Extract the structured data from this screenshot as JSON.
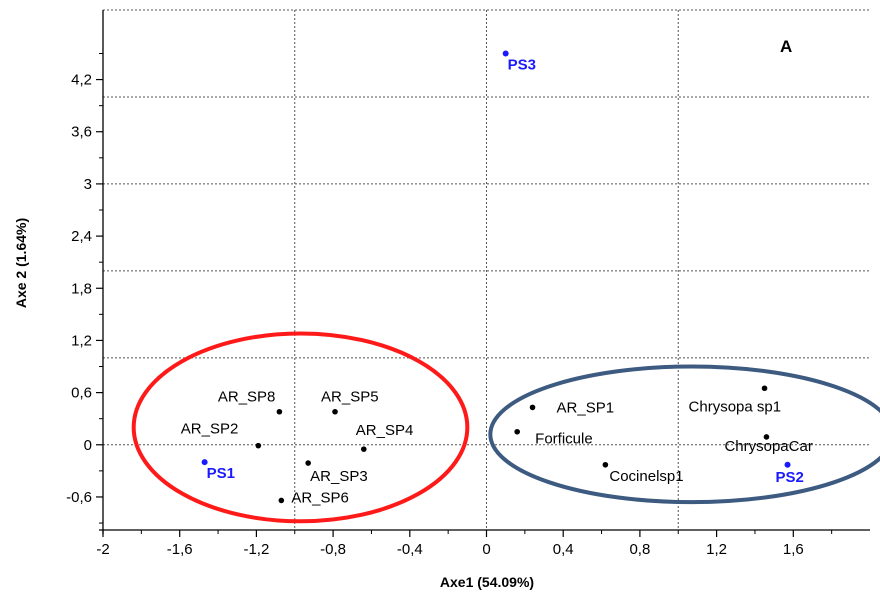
{
  "chart_data": {
    "type": "scatter",
    "title": "",
    "panel_label": "A",
    "xlabel": "Axe1 (54.09%)",
    "ylabel": "Axe 2 (1.64%)",
    "xlim": [
      -2,
      2
    ],
    "ylim": [
      -0.98,
      5.0
    ],
    "x_ticks": [
      -2,
      -1.6,
      -1.2,
      -0.8,
      -0.4,
      0,
      0.4,
      0.8,
      1.2,
      1.6
    ],
    "x_tick_labels": [
      "-2",
      "-1,6",
      "-1,2",
      "-0,8",
      "-0,4",
      "0",
      "0,4",
      "0,8",
      "1,2",
      "1,6"
    ],
    "y_ticks": [
      -0.6,
      0,
      0.6,
      1.2,
      1.8,
      2.4,
      3,
      3.6,
      4.2
    ],
    "y_tick_labels": [
      "-0,6",
      "0",
      "0,6",
      "1,2",
      "1,8",
      "2,4",
      "3",
      "3,6",
      "4,2"
    ],
    "grid": "dotted",
    "series": [
      {
        "color": "#000000",
        "points": [
          {
            "label": "AR_SP8",
            "x": -1.08,
            "y": 0.38
          },
          {
            "label": "AR_SP5",
            "x": -0.79,
            "y": 0.38
          },
          {
            "label": "AR_SP2",
            "x": -1.19,
            "y": -0.01
          },
          {
            "label": "AR_SP4",
            "x": -0.64,
            "y": -0.05
          },
          {
            "label": "AR_SP3",
            "x": -0.93,
            "y": -0.21
          },
          {
            "label": "AR_SP6",
            "x": -1.07,
            "y": -0.64
          },
          {
            "label": "AR_SP1",
            "x": 0.24,
            "y": 0.43
          },
          {
            "label": "Forficule",
            "x": 0.16,
            "y": 0.15
          },
          {
            "label": "Cocinelsp1",
            "x": 0.62,
            "y": -0.23
          },
          {
            "label": "Chrysopa sp1",
            "x": 1.45,
            "y": 0.65
          },
          {
            "label": "ChrysopaCar",
            "x": 1.46,
            "y": 0.09
          }
        ]
      },
      {
        "color": "#1a1aff",
        "points": [
          {
            "label": "PS1",
            "x": -1.47,
            "y": -0.2
          },
          {
            "label": "PS2",
            "x": 1.57,
            "y": -0.23
          },
          {
            "label": "PS3",
            "x": 0.1,
            "y": 4.5
          }
        ]
      }
    ],
    "groupings": [
      {
        "shape": "ellipse",
        "color": "#ff1a1a",
        "cx": -0.97,
        "cy": 0.2,
        "rx": 0.87,
        "ry": 1.08
      },
      {
        "shape": "ellipse",
        "color": "#3d5a80",
        "cx": 1.07,
        "cy": 0.12,
        "rx": 1.05,
        "ry": 0.78
      }
    ]
  }
}
